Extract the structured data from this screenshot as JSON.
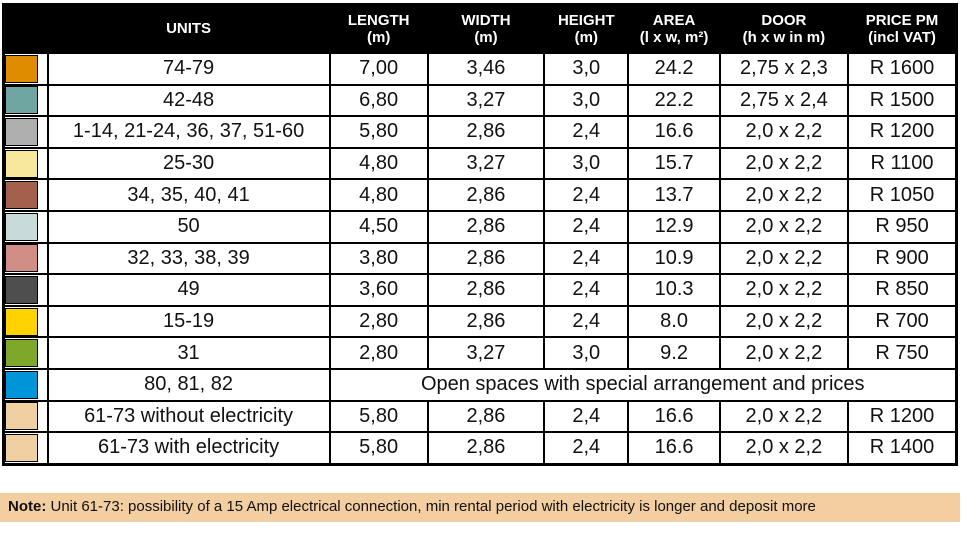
{
  "colors": {
    "header_bg": "#000000",
    "border": "#000000",
    "note_bg": "#F3CEA1"
  },
  "header": {
    "columns": [
      {
        "label": "UNITS",
        "sub": ""
      },
      {
        "label": "LENGTH",
        "sub": "(m)"
      },
      {
        "label": "WIDTH",
        "sub": "(m)"
      },
      {
        "label": "HEIGHT",
        "sub": "(m)"
      },
      {
        "label": "AREA",
        "sub": "(l x w, m²)"
      },
      {
        "label": "DOOR",
        "sub": "(h x w in m)"
      },
      {
        "label": "PRICE PM",
        "sub": "(incl VAT)"
      }
    ]
  },
  "rows": [
    {
      "color": "#E08C00",
      "units": "74-79",
      "length": "7,00",
      "width": "3,46",
      "height": "3,0",
      "area": "24.2",
      "door": "2,75 x 2,3",
      "price": "R 1600"
    },
    {
      "color": "#6FA6A1",
      "units": "42-48",
      "length": "6,80",
      "width": "3,27",
      "height": "3,0",
      "area": "22.2",
      "door": "2,75 x 2,4",
      "price": "R 1500"
    },
    {
      "color": "#AFAFAF",
      "units": "1-14, 21-24, 36, 37, 51-60",
      "length": "5,80",
      "width": "2,86",
      "height": "2,4",
      "area": "16.6",
      "door": "2,0 x 2,2",
      "price": "R 1200"
    },
    {
      "color": "#F8E89C",
      "units": "25-30",
      "length": "4,80",
      "width": "3,27",
      "height": "3,0",
      "area": "15.7",
      "door": "2,0 x 2,2",
      "price": "R 1100"
    },
    {
      "color": "#A5604D",
      "units": "34, 35, 40, 41",
      "length": "4,80",
      "width": "2,86",
      "height": "2,4",
      "area": "13.7",
      "door": "2,0 x 2,2",
      "price": "R 1050"
    },
    {
      "color": "#C9DADB",
      "units": "50",
      "length": "4,50",
      "width": "2,86",
      "height": "2,4",
      "area": "12.9",
      "door": "2,0 x 2,2",
      "price": "R 950"
    },
    {
      "color": "#D18E87",
      "units": "32, 33, 38, 39",
      "length": "3,80",
      "width": "2,86",
      "height": "2,4",
      "area": "10.9",
      "door": "2,0 x 2,2",
      "price": "R 900"
    },
    {
      "color": "#4E4E4E",
      "units": "49",
      "length": "3,60",
      "width": "2,86",
      "height": "2,4",
      "area": "10.3",
      "door": "2,0 x 2,2",
      "price": "R 850"
    },
    {
      "color": "#FFD300",
      "units": "15-19",
      "length": "2,80",
      "width": "2,86",
      "height": "2,4",
      "area": "8.0",
      "door": "2,0 x 2,2",
      "price": "R 700"
    },
    {
      "color": "#7FA82A",
      "units": "31",
      "length": "2,80",
      "width": "3,27",
      "height": "3,0",
      "area": "9.2",
      "door": "2,0 x 2,2",
      "price": "R 750"
    },
    {
      "color": "#0095D8",
      "units": "80, 81, 82",
      "span_text": "Open spaces with special arrangement and prices"
    },
    {
      "color": "#F0CFA3",
      "units": "61-73 without electricity",
      "length": "5,80",
      "width": "2,86",
      "height": "2,4",
      "area": "16.6",
      "door": "2,0 x 2,2",
      "price": "R 1200"
    },
    {
      "color": "#F0CFA3",
      "units": "61-73 with electricity",
      "length": "5,80",
      "width": "2,86",
      "height": "2,4",
      "area": "16.6",
      "door": "2,0 x 2,2",
      "price": "R 1400"
    }
  ],
  "note": {
    "label": "Note:",
    "text": " Unit 61-73: possibility of a 15 Amp electrical connection, min rental period with electricity is longer and deposit more"
  }
}
